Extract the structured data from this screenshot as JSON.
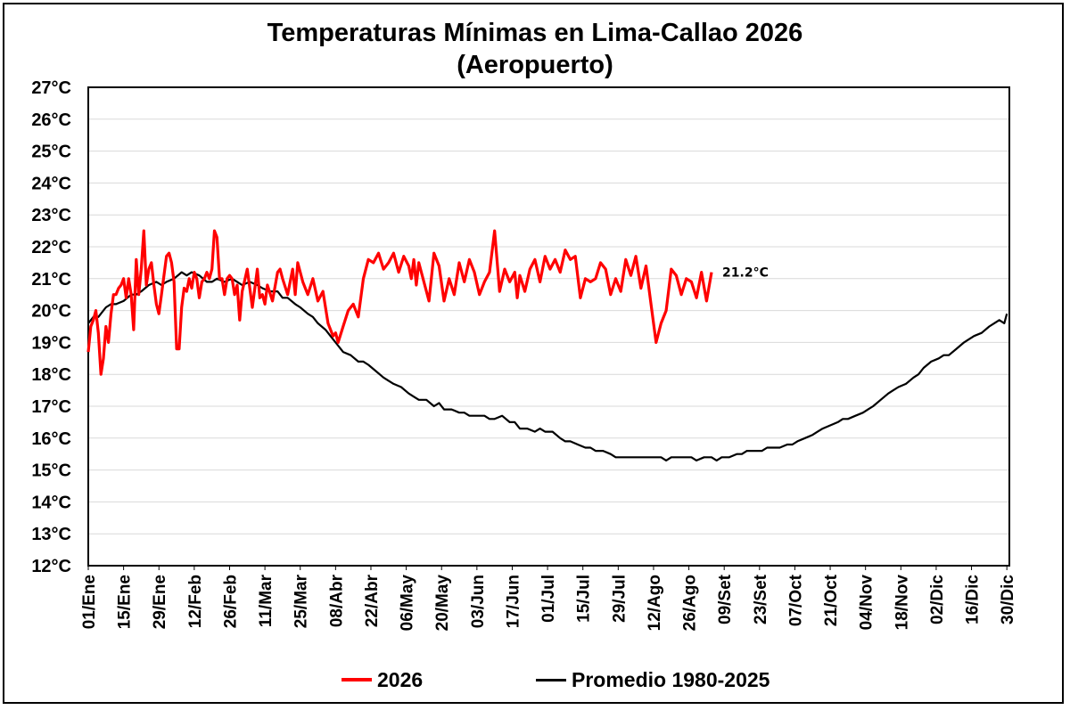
{
  "chart_data": {
    "type": "line",
    "title": "Temperaturas Mínimas en Lima-Callao 2026",
    "subtitle": "(Aeropuerto)",
    "xlabel": "",
    "ylabel": "",
    "ylim": [
      12,
      27
    ],
    "y_ticks": [
      "12°C",
      "13°C",
      "14°C",
      "15°C",
      "16°C",
      "17°C",
      "18°C",
      "19°C",
      "20°C",
      "21°C",
      "22°C",
      "23°C",
      "24°C",
      "25°C",
      "26°C",
      "27°C"
    ],
    "x_tick_days": [
      1,
      15,
      29,
      43,
      57,
      71,
      85,
      99,
      113,
      127,
      141,
      155,
      169,
      183,
      197,
      211,
      225,
      239,
      253,
      267,
      281,
      295,
      309,
      323,
      337,
      351,
      365
    ],
    "x_ticks": [
      "01/Ene",
      "15/Ene",
      "29/Ene",
      "12/Feb",
      "26/Feb",
      "11/Mar",
      "25/Mar",
      "08/Abr",
      "22/Abr",
      "06/May",
      "20/May",
      "03/Jun",
      "17/Jun",
      "01/Jul",
      "15/Jul",
      "29/Jul",
      "12/Ago",
      "26/Ago",
      "09/Set",
      "23/Set",
      "07/Oct",
      "21/Oct",
      "04/Nov",
      "18/Nov",
      "02/Dic",
      "16/Dic",
      "30/Dic"
    ],
    "grid": true,
    "legend_position": "bottom",
    "series": [
      {
        "name": "2026",
        "color": "#ff0000",
        "x": [
          1,
          2,
          3,
          4,
          5,
          6,
          7,
          8,
          9,
          10,
          11,
          12,
          13,
          14,
          15,
          16,
          17,
          18,
          19,
          20,
          21,
          22,
          23,
          24,
          25,
          26,
          27,
          28,
          29,
          30,
          32,
          33,
          34,
          35,
          36,
          37,
          38,
          39,
          40,
          41,
          42,
          43,
          44,
          45,
          46,
          47,
          48,
          49,
          50,
          51,
          52,
          53,
          54,
          55,
          56,
          57,
          58,
          59,
          60,
          61,
          62,
          64,
          66,
          68,
          69,
          70,
          71,
          72,
          74,
          76,
          77,
          78,
          80,
          82,
          83,
          84,
          86,
          88,
          90,
          92,
          94,
          96,
          98,
          99,
          100,
          102,
          104,
          106,
          108,
          110,
          112,
          114,
          116,
          118,
          120,
          122,
          124,
          126,
          128,
          129,
          130,
          131,
          132,
          134,
          136,
          138,
          140,
          142,
          144,
          146,
          148,
          150,
          152,
          154,
          156,
          158,
          160,
          162,
          164,
          166,
          168,
          170,
          171,
          172,
          174,
          176,
          178,
          180,
          182,
          184,
          186,
          188,
          190,
          192,
          194,
          196,
          198,
          200,
          202,
          204,
          206,
          208,
          210,
          212,
          214,
          216,
          218,
          220,
          222,
          223,
          224,
          226,
          228,
          230,
          232,
          234,
          236,
          238,
          240,
          242,
          244,
          246,
          248
        ],
        "values": [
          18.7,
          19.5,
          19.7,
          20.0,
          19.3,
          18.0,
          18.5,
          19.5,
          19.0,
          19.9,
          20.5,
          20.5,
          20.7,
          20.8,
          21.0,
          20.4,
          21.0,
          20.5,
          19.4,
          21.6,
          20.5,
          21.3,
          22.5,
          20.8,
          21.3,
          21.5,
          20.8,
          20.2,
          19.9,
          20.5,
          21.7,
          21.8,
          21.5,
          20.9,
          18.8,
          18.8,
          20.1,
          20.7,
          20.6,
          21.0,
          20.7,
          21.2,
          21.0,
          20.4,
          20.9,
          21.0,
          21.2,
          21.0,
          21.3,
          22.5,
          22.3,
          21.0,
          21.0,
          20.5,
          21.0,
          21.1,
          21.0,
          20.5,
          20.8,
          19.7,
          20.6,
          21.3,
          20.1,
          21.3,
          20.4,
          20.5,
          20.2,
          20.8,
          20.3,
          21.2,
          21.3,
          21.0,
          20.5,
          21.3,
          20.5,
          21.5,
          20.9,
          20.5,
          21.0,
          20.3,
          20.6,
          19.6,
          19.2,
          19.3,
          19.0,
          19.5,
          20.0,
          20.2,
          19.8,
          21.0,
          21.6,
          21.5,
          21.8,
          21.3,
          21.5,
          21.8,
          21.2,
          21.7,
          21.4,
          21.0,
          21.6,
          20.8,
          21.5,
          20.9,
          20.3,
          21.8,
          21.4,
          20.3,
          21.0,
          20.5,
          21.5,
          20.9,
          21.6,
          21.2,
          20.5,
          20.9,
          21.2,
          22.5,
          20.6,
          21.3,
          20.9,
          21.2,
          20.4,
          21.1,
          20.6,
          21.3,
          21.6,
          20.9,
          21.7,
          21.3,
          21.6,
          21.2,
          21.9,
          21.6,
          21.7,
          20.4,
          21.0,
          20.9,
          21.0,
          21.5,
          21.3,
          20.5,
          21.0,
          20.6,
          21.6,
          21.1,
          21.7,
          20.7,
          21.4,
          20.8,
          20.2,
          19.0,
          19.6,
          20.0,
          21.3,
          21.1,
          20.5,
          21.0,
          20.9,
          20.4,
          21.2,
          20.3,
          21.2
        ],
        "last_value_label": "21.2°C"
      },
      {
        "name": "Promedio 1980-2025",
        "color": "#000000",
        "x": [
          1,
          3,
          5,
          8,
          10,
          12,
          15,
          18,
          20,
          22,
          25,
          28,
          30,
          32,
          35,
          38,
          40,
          42,
          45,
          48,
          50,
          52,
          55,
          58,
          60,
          62,
          65,
          68,
          70,
          73,
          76,
          78,
          80,
          83,
          85,
          88,
          90,
          92,
          95,
          98,
          100,
          102,
          105,
          108,
          110,
          112,
          115,
          118,
          120,
          122,
          125,
          128,
          130,
          132,
          135,
          138,
          140,
          142,
          145,
          148,
          150,
          152,
          155,
          158,
          160,
          162,
          165,
          168,
          170,
          172,
          175,
          178,
          180,
          182,
          185,
          188,
          190,
          192,
          195,
          198,
          200,
          202,
          205,
          208,
          210,
          212,
          215,
          218,
          220,
          222,
          225,
          228,
          230,
          232,
          235,
          238,
          240,
          242,
          245,
          248,
          250,
          252,
          255,
          258,
          260,
          262,
          265,
          268,
          270,
          272,
          275,
          278,
          280,
          282,
          285,
          288,
          290,
          292,
          295,
          298,
          300,
          302,
          305,
          308,
          310,
          312,
          315,
          318,
          320,
          322,
          325,
          328,
          330,
          332,
          335,
          338,
          340,
          342,
          345,
          348,
          350,
          352,
          355,
          358,
          360,
          362,
          364,
          365
        ],
        "values": [
          19.6,
          19.8,
          19.8,
          20.1,
          20.2,
          20.2,
          20.3,
          20.5,
          20.5,
          20.6,
          20.8,
          20.9,
          20.8,
          20.9,
          21.0,
          21.2,
          21.1,
          21.2,
          21.1,
          20.9,
          20.9,
          21.0,
          20.9,
          21.0,
          20.9,
          20.8,
          20.9,
          20.8,
          20.7,
          20.6,
          20.6,
          20.4,
          20.4,
          20.2,
          20.1,
          19.9,
          19.8,
          19.6,
          19.4,
          19.1,
          18.9,
          18.7,
          18.6,
          18.4,
          18.4,
          18.3,
          18.1,
          17.9,
          17.8,
          17.7,
          17.6,
          17.4,
          17.3,
          17.2,
          17.2,
          17.0,
          17.1,
          16.9,
          16.9,
          16.8,
          16.8,
          16.7,
          16.7,
          16.7,
          16.6,
          16.6,
          16.7,
          16.5,
          16.5,
          16.3,
          16.3,
          16.2,
          16.3,
          16.2,
          16.2,
          16.0,
          15.9,
          15.9,
          15.8,
          15.7,
          15.7,
          15.6,
          15.6,
          15.5,
          15.4,
          15.4,
          15.4,
          15.4,
          15.4,
          15.4,
          15.4,
          15.4,
          15.3,
          15.4,
          15.4,
          15.4,
          15.4,
          15.3,
          15.4,
          15.4,
          15.3,
          15.4,
          15.4,
          15.5,
          15.5,
          15.6,
          15.6,
          15.6,
          15.7,
          15.7,
          15.7,
          15.8,
          15.8,
          15.9,
          16.0,
          16.1,
          16.2,
          16.3,
          16.4,
          16.5,
          16.6,
          16.6,
          16.7,
          16.8,
          16.9,
          17.0,
          17.2,
          17.4,
          17.5,
          17.6,
          17.7,
          17.9,
          18.0,
          18.2,
          18.4,
          18.5,
          18.6,
          18.6,
          18.8,
          19.0,
          19.1,
          19.2,
          19.3,
          19.5,
          19.6,
          19.7,
          19.6,
          19.9
        ]
      }
    ]
  }
}
